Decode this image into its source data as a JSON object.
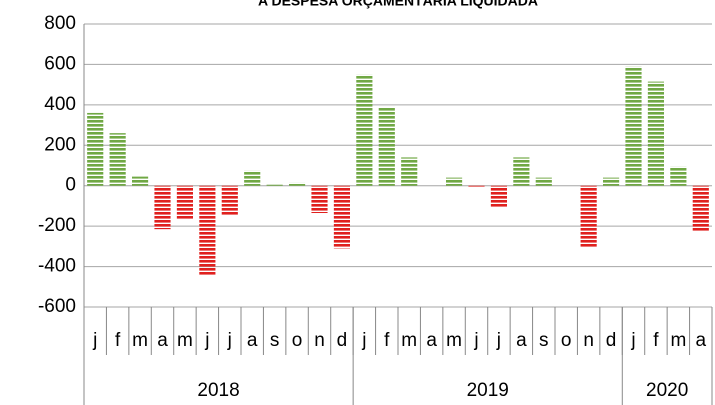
{
  "chart_data": {
    "type": "bar",
    "title": "A DESPESA ORÇAMENTÁRIA LIQUIDADA",
    "categories": [
      "j",
      "f",
      "m",
      "a",
      "m",
      "j",
      "j",
      "a",
      "s",
      "o",
      "n",
      "d",
      "j",
      "f",
      "m",
      "a",
      "m",
      "j",
      "j",
      "a",
      "s",
      "o",
      "n",
      "d",
      "j",
      "f",
      "m",
      "a"
    ],
    "year_groups": [
      {
        "label": "2018",
        "count": 12
      },
      {
        "label": "2019",
        "count": 12
      },
      {
        "label": "2020",
        "count": 4
      }
    ],
    "values": [
      360,
      260,
      45,
      -215,
      -165,
      -445,
      -145,
      75,
      5,
      15,
      -135,
      -310,
      550,
      390,
      140,
      0,
      40,
      -10,
      -105,
      140,
      40,
      0,
      -305,
      40,
      590,
      515,
      95,
      -225
    ],
    "positive_color": "#70a844",
    "negative_color": "#e0201e",
    "ylim": [
      -600,
      800
    ],
    "yticks": [
      -600,
      -400,
      -200,
      0,
      200,
      400,
      600,
      800
    ],
    "grid": true
  }
}
